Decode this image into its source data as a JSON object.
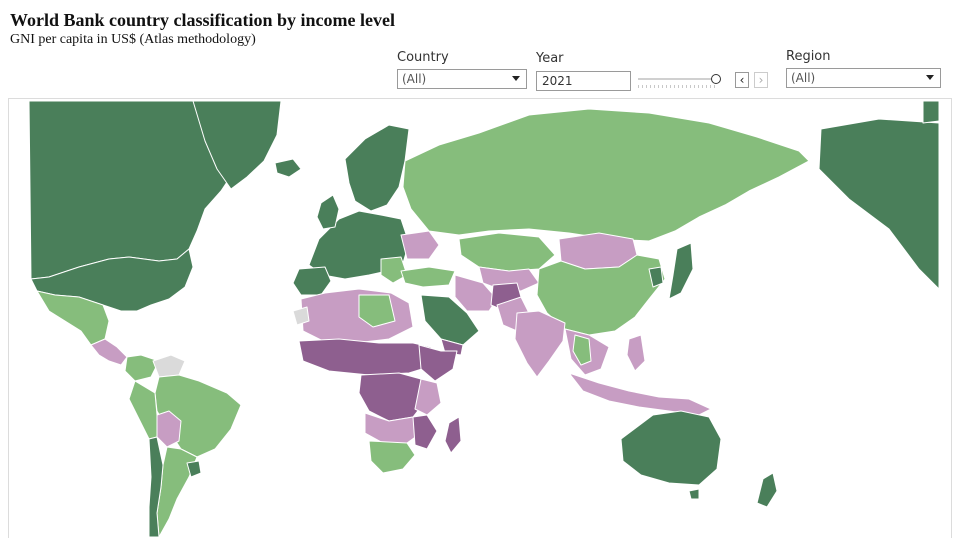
{
  "header": {
    "title": "World Bank country classification by income level",
    "subtitle": "GNI per capita in US$ (Atlas methodology)"
  },
  "filters": {
    "country": {
      "label": "Country",
      "value": "(All)"
    },
    "year": {
      "label": "Year",
      "value": "2021"
    },
    "region": {
      "label": "Region",
      "value": "(All)"
    }
  },
  "controls": {
    "prev_icon": "chevron-left-icon",
    "next_icon": "chevron-right-icon",
    "next_enabled": false
  },
  "income_colors": {
    "high": "#4a7f5a",
    "upper_middle": "#86bd7c",
    "lower_middle": "#c79dc3",
    "low": "#8e5f8f",
    "no_data": "#dadada"
  }
}
